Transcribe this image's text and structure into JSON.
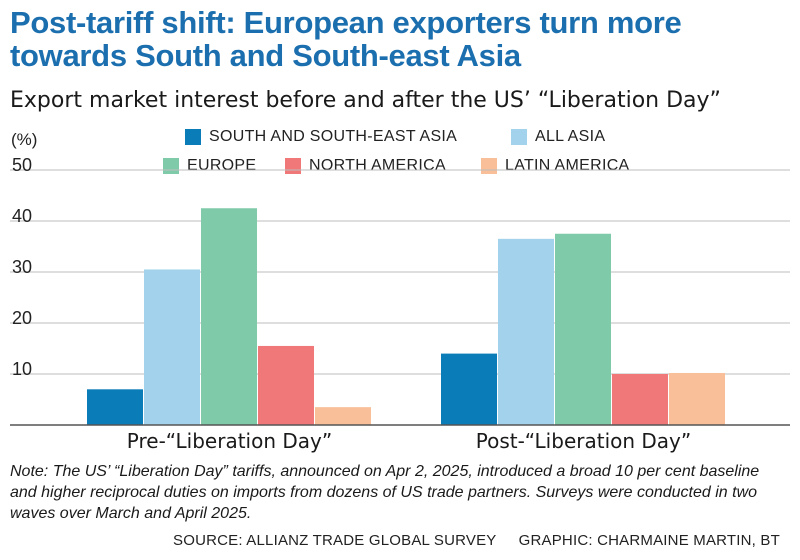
{
  "title": "Post-tariff shift: European exporters turn more towards South and South-east Asia",
  "subtitle": "Export market interest before and after the US’ “Liberation Day”",
  "note": "Note: The US’ “Liberation Day” tariffs, announced on Apr 2, 2025, introduced a broad 10 per cent baseline and higher reciprocal duties on imports from dozens of US trade partners. Surveys were conducted in two waves over March and April 2025.",
  "source": "SOURCE: ALLIANZ TRADE GLOBAL SURVEY",
  "graphic": "GRAPHIC: CHARMAINE MARTIN, BT",
  "chart_data": {
    "type": "bar",
    "ylabel": "(%)",
    "ylim": [
      0,
      50
    ],
    "yticks": [
      10,
      20,
      30,
      40,
      50
    ],
    "grid": true,
    "legend_position": "top",
    "categories": [
      "Pre-“Liberation Day”",
      "Post-“Liberation Day”"
    ],
    "series": [
      {
        "name": "SOUTH AND SOUTH-EAST ASIA",
        "color": "#0a7db8",
        "values": [
          7,
          14
        ]
      },
      {
        "name": "ALL ASIA",
        "color": "#a3d3ec",
        "values": [
          30.5,
          36.5
        ]
      },
      {
        "name": "EUROPE",
        "color": "#7ecaa9",
        "values": [
          42.5,
          37.5
        ]
      },
      {
        "name": "NORTH AMERICA",
        "color": "#f07878",
        "values": [
          15.5,
          10
        ]
      },
      {
        "name": "LATIN AMERICA",
        "color": "#f8bf98",
        "values": [
          3.5,
          10.2
        ]
      }
    ]
  }
}
